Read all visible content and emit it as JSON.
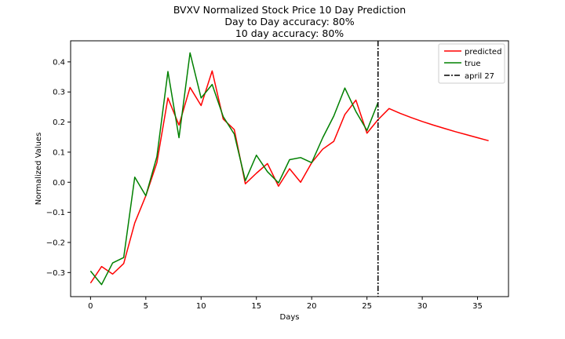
{
  "chart_data": {
    "type": "line",
    "title": "BVXV Normalized Stock Price 10 Day Prediction",
    "subtitle_lines": [
      "Day to Day accuracy: 80%",
      "10 day accuracy: 80%"
    ],
    "xlabel": "Days",
    "ylabel": "Normalized Values",
    "xlim": [
      -1.8,
      37.8
    ],
    "ylim": [
      -0.38,
      0.47
    ],
    "x_ticks": [
      0,
      5,
      10,
      15,
      20,
      25,
      30,
      35
    ],
    "y_ticks": [
      -0.3,
      -0.2,
      -0.1,
      0.0,
      0.1,
      0.2,
      0.3,
      0.4
    ],
    "y_tick_labels": [
      "−0.3",
      "−0.2",
      "−0.1",
      "0.0",
      "0.1",
      "0.2",
      "0.3",
      "0.4"
    ],
    "grid": false,
    "legend_position": "top-right",
    "series": [
      {
        "name": "predicted",
        "color": "#ff0000",
        "x": [
          0,
          1,
          2,
          3,
          4,
          5,
          6,
          7,
          8,
          9,
          10,
          11,
          12,
          13,
          14,
          15,
          16,
          17,
          18,
          19,
          20,
          21,
          22,
          23,
          24,
          25,
          26,
          27,
          28,
          29,
          30,
          31,
          32,
          33,
          34,
          35,
          36
        ],
        "y": [
          -0.335,
          -0.28,
          -0.305,
          -0.27,
          -0.135,
          -0.045,
          0.065,
          0.28,
          0.19,
          0.315,
          0.255,
          0.37,
          0.21,
          0.175,
          -0.005,
          0.03,
          0.062,
          -0.013,
          0.045,
          0.0,
          0.065,
          0.11,
          0.136,
          0.225,
          0.273,
          0.163,
          0.208,
          0.245,
          0.229,
          0.215,
          0.202,
          0.19,
          0.179,
          0.168,
          0.158,
          0.148,
          0.138
        ]
      },
      {
        "name": "true",
        "color": "#008000",
        "x": [
          0,
          1,
          2,
          3,
          4,
          5,
          6,
          7,
          8,
          9,
          10,
          11,
          12,
          13,
          14,
          15,
          16,
          17,
          18,
          19,
          20,
          21,
          22,
          23,
          24,
          25,
          26
        ],
        "y": [
          -0.295,
          -0.34,
          -0.268,
          -0.25,
          0.017,
          -0.045,
          0.085,
          0.368,
          0.148,
          0.43,
          0.28,
          0.325,
          0.218,
          0.16,
          0.005,
          0.09,
          0.035,
          -0.002,
          0.075,
          0.082,
          0.065,
          0.148,
          0.22,
          0.313,
          0.235,
          0.172,
          0.265
        ]
      }
    ],
    "vertical_line": {
      "name": "april 27",
      "x": 26,
      "color": "#000000",
      "style": "dash-dot"
    }
  }
}
